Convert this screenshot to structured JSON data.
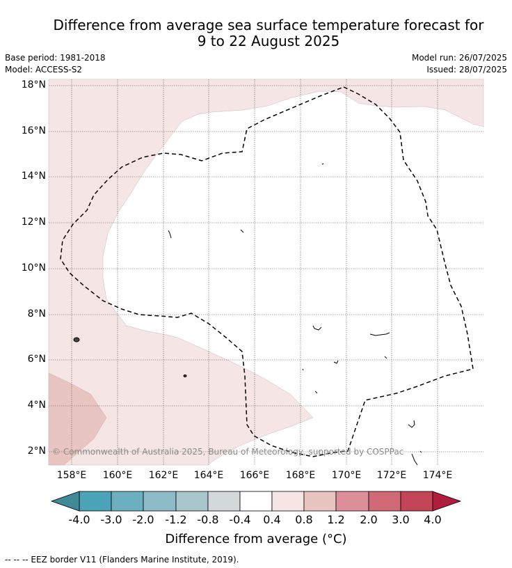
{
  "title_line1": "Difference from average sea surface temperature forecast for",
  "title_line2": "9 to 22 August 2025",
  "meta": {
    "base_period": "Base period: 1981-2018",
    "model": "Model: ACCESS-S2",
    "model_run": "Model run: 26/07/2025",
    "issued": "Issued: 28/07/2025"
  },
  "map": {
    "lat_labels": [
      "18°N",
      "16°N",
      "14°N",
      "12°N",
      "10°N",
      "8°N",
      "6°N",
      "4°N",
      "2°N"
    ],
    "lon_labels": [
      "158°E",
      "160°E",
      "162°E",
      "164°E",
      "166°E",
      "168°E",
      "170°E",
      "172°E",
      "174°E"
    ],
    "copyright": "© Commonwealth of Australia 2025, Bureau of Meteorology, supported by COSPPac"
  },
  "colorbar": {
    "labels": [
      "-4.0",
      "-3.0",
      "-2.0",
      "-1.2",
      "-0.8",
      "-0.4",
      "0.4",
      "0.8",
      "1.2",
      "2.0",
      "3.0",
      "4.0"
    ],
    "colors": [
      "#4aa3b6",
      "#6cb0c0",
      "#8ebcc6",
      "#a9c7cb",
      "#d3d9d9",
      "#ffffff",
      "#f5e5e4",
      "#e9c5c1",
      "#dc8f99",
      "#cf6976",
      "#c24657"
    ],
    "under_color": "#3f8a96",
    "over_color": "#b01e3e",
    "title": "Difference from average (°C)"
  },
  "legend": {
    "eez": "--  --  -- EEZ border V11 (Flanders Marine Institute, 2019)."
  }
}
